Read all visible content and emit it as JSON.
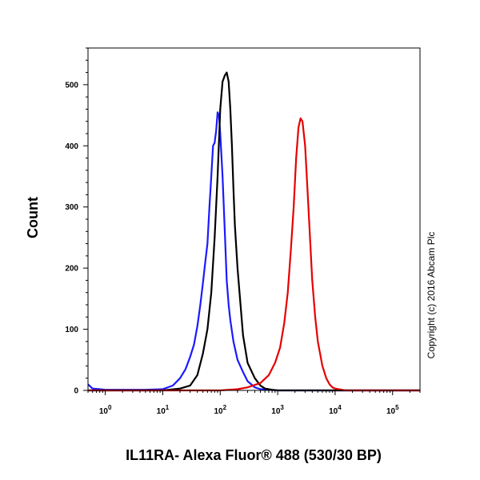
{
  "chart_data": {
    "type": "line",
    "title": "",
    "xlabel": "IL11RA- Alexa Fluor® 488 (530/30 BP)",
    "ylabel": "Count",
    "x_scale": "log",
    "xlim": [
      0.5,
      300000
    ],
    "ylim": [
      0,
      560
    ],
    "x_ticks": [
      {
        "value": 1,
        "base": "10",
        "exp": "0"
      },
      {
        "value": 10,
        "base": "10",
        "exp": "1"
      },
      {
        "value": 100,
        "base": "10",
        "exp": "2"
      },
      {
        "value": 1000,
        "base": "10",
        "exp": "3"
      },
      {
        "value": 10000,
        "base": "10",
        "exp": "4"
      },
      {
        "value": 100000,
        "base": "10",
        "exp": "5"
      }
    ],
    "y_ticks": [
      {
        "value": 0,
        "label": "0"
      },
      {
        "value": 100,
        "label": "100"
      },
      {
        "value": 200,
        "label": "200"
      },
      {
        "value": 300,
        "label": "300"
      },
      {
        "value": 400,
        "label": "400"
      },
      {
        "value": 500,
        "label": "500"
      }
    ],
    "grid": false,
    "legend": "none",
    "annotation": "Copyright (c) 2016 Abcam Plc",
    "series": [
      {
        "color": "#1a1aff",
        "x": [
          0.5,
          0.6,
          0.8,
          1,
          2,
          5,
          10,
          15,
          20,
          25,
          30,
          35,
          40,
          45,
          50,
          55,
          60,
          65,
          70,
          75,
          80,
          85,
          90,
          95,
          100,
          110,
          120,
          130,
          140,
          150,
          170,
          200,
          250,
          300,
          400,
          500,
          1000,
          10000,
          300000
        ],
        "y": [
          10,
          3,
          2,
          1,
          1,
          1,
          2,
          8,
          20,
          35,
          55,
          75,
          105,
          140,
          175,
          210,
          240,
          300,
          350,
          400,
          405,
          425,
          455,
          450,
          420,
          350,
          260,
          180,
          140,
          115,
          80,
          50,
          30,
          15,
          5,
          2,
          0,
          0,
          0
        ]
      },
      {
        "color": "#000000",
        "x": [
          0.5,
          1,
          10,
          20,
          30,
          40,
          50,
          60,
          70,
          80,
          90,
          100,
          110,
          120,
          130,
          140,
          150,
          160,
          170,
          180,
          200,
          250,
          300,
          400,
          500,
          600,
          800,
          1000,
          10000,
          300000
        ],
        "y": [
          0,
          0,
          0,
          3,
          8,
          25,
          60,
          100,
          160,
          250,
          350,
          460,
          505,
          515,
          520,
          505,
          460,
          400,
          330,
          270,
          200,
          90,
          45,
          20,
          8,
          3,
          1,
          0,
          0,
          0
        ]
      },
      {
        "color": "#e60000",
        "x": [
          0.5,
          10,
          100,
          200,
          300,
          500,
          700,
          900,
          1100,
          1300,
          1500,
          1700,
          1900,
          2100,
          2300,
          2500,
          2700,
          3000,
          3300,
          3700,
          4000,
          4500,
          5000,
          6000,
          7000,
          8000,
          9000,
          10000,
          15000,
          300000
        ],
        "y": [
          0,
          0,
          0,
          2,
          5,
          12,
          25,
          45,
          70,
          110,
          160,
          230,
          300,
          380,
          430,
          445,
          440,
          400,
          330,
          240,
          180,
          120,
          80,
          40,
          20,
          10,
          5,
          3,
          0,
          0
        ]
      }
    ]
  }
}
